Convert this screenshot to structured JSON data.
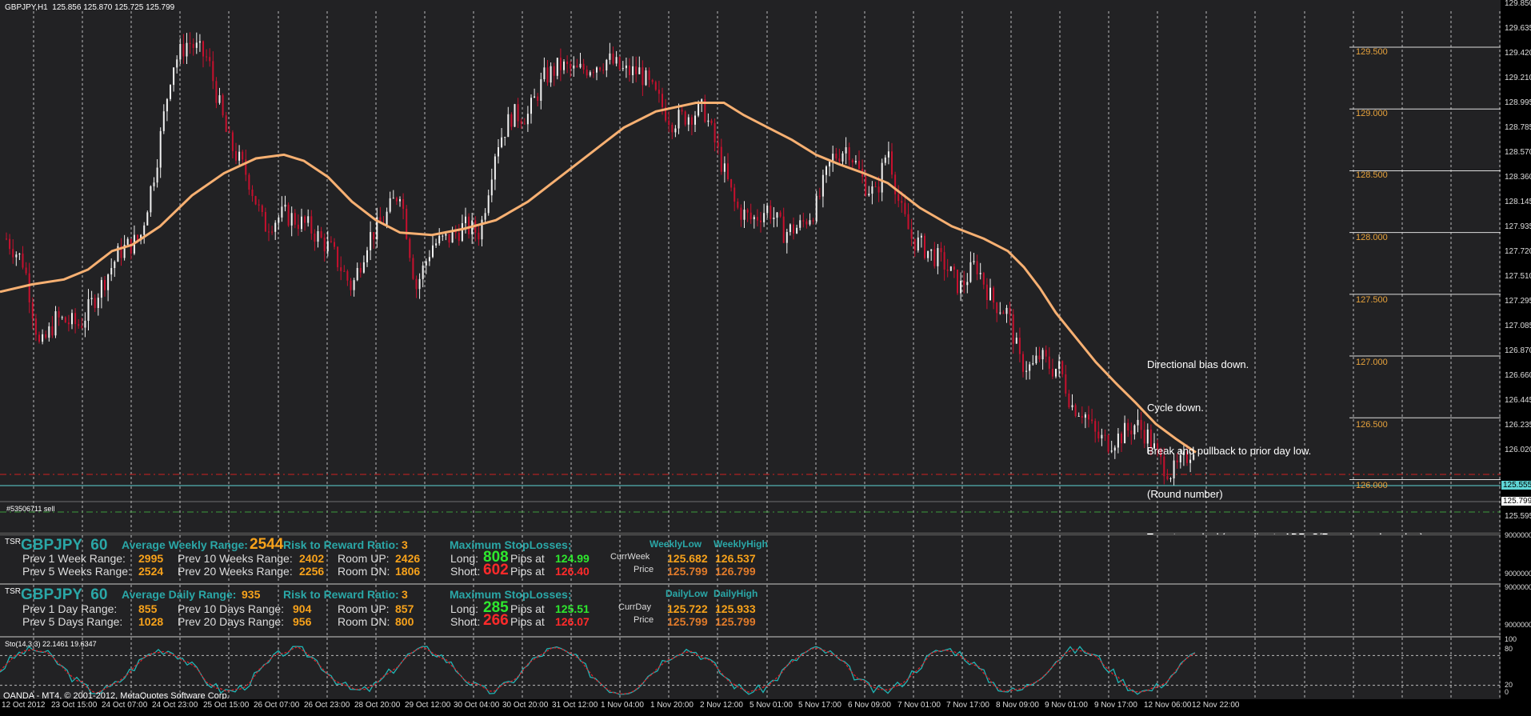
{
  "chart": {
    "header": "GBPJPY,H1  125.856 125.870 125.725 125.799",
    "price_scale": [
      "129.850",
      "129.635",
      "129.420",
      "129.210",
      "128.995",
      "128.785",
      "128.570",
      "128.360",
      "128.145",
      "127.935",
      "127.720",
      "127.510",
      "127.295",
      "127.085",
      "126.870",
      "126.660",
      "126.445",
      "126.235",
      "126.020",
      "125.555",
      "125.799",
      "125.595"
    ],
    "level_labels": [
      "129.500",
      "129.000",
      "128.500",
      "128.000",
      "127.500",
      "127.000",
      "126.500",
      "126.000"
    ],
    "order_label": "#53506711 sell",
    "current_price": "125.799",
    "cyan_price": "125.555",
    "red_line_price": "126.020",
    "annotation": [
      "Directional bias down.",
      "Cycle down.",
      "Break and pullback to prior day low.",
      "(Round number)",
      "Targets marked (according to ADR, S/R, and round number)"
    ],
    "colors": {
      "ma": "#f7b072",
      "cyan": "#5fd6d6",
      "red_dash": "#d02020",
      "green_dash": "#3c9a3c",
      "bg": "#222224"
    }
  },
  "panel_weekly": {
    "tag": "TSR",
    "symbol": "GBPJPY  60",
    "avg_label": "Average Weekly Range:",
    "avg_value": "2544",
    "rr_label": "Risk to Reward Ratio:",
    "rr_value": "3",
    "max_sl": "Maximum StopLosses;",
    "hi_lo": [
      "WeeklyLow",
      "WeeklyHigh"
    ],
    "r1_label": "Prev 1 Week Range:",
    "r1_value": "2995",
    "r10_label": "Prev 10 Weeks Range:",
    "r10_value": "2402",
    "r5_label": "Prev 5 Weeks Range:",
    "r5_value": "2524",
    "r20_label": "Prev 20 Weeks Range:",
    "r20_value": "2256",
    "room_up_label": "Room UP:",
    "room_up": "2426",
    "room_dn_label": "Room DN:",
    "room_dn": "1806",
    "long_label": "Long:",
    "long_pips": "808",
    "short_label": "Short:",
    "short_pips": "602",
    "pips_at": "Pips at",
    "long_price": "124.99",
    "short_price": "126.40",
    "curr_label": "CurrWeek",
    "price_label": "Price",
    "low_curr": "125.682",
    "high_curr": "126.537",
    "low_price": "125.799",
    "high_price": "126.799"
  },
  "panel_daily": {
    "tag": "TSR",
    "symbol": "GBPJPY  60",
    "avg_label": "Average Daily Range:",
    "avg_value": "935",
    "rr_label": "Risk to Reward Ratio:",
    "rr_value": "3",
    "max_sl": "Maximum StopLosses;",
    "hi_lo": [
      "DailyLow",
      "DailyHigh"
    ],
    "r1_label": "Prev 1 Day Range:",
    "r1_value": "855",
    "r10_label": "Prev 10 Days Range:",
    "r10_value": "904",
    "r5_label": "Prev 5 Days Range:",
    "r5_value": "1028",
    "r20_label": "Prev 20 Days Range:",
    "r20_value": "956",
    "room_up_label": "Room UP:",
    "room_up": "857",
    "room_dn_label": "Room DN:",
    "room_dn": "800",
    "long_label": "Long:",
    "long_pips": "285",
    "short_label": "Short:",
    "short_pips": "266",
    "pips_at": "Pips at",
    "long_price": "125.51",
    "short_price": "126.07",
    "curr_label": "CurrDay",
    "price_label": "Price",
    "low_curr": "125.722",
    "high_curr": "125.933",
    "low_price": "125.799",
    "high_price": "125.799"
  },
  "panel_scale": {
    "weekly": [
      "9000000",
      "9000000"
    ],
    "daily": [
      "9000000",
      "9000000"
    ]
  },
  "stoch": {
    "label": "Sto(14,3,3) 22.1461 19.6347",
    "levels": [
      "100",
      "80",
      "20",
      "0"
    ]
  },
  "copyright": "OANDA - MT4, © 2001-2012, MetaQuotes Software Corp.",
  "time_axis": [
    "12 Oct 2012",
    "23 Oct 15:00",
    "24 Oct 07:00",
    "24 Oct 23:00",
    "25 Oct 15:00",
    "26 Oct 07:00",
    "26 Oct 23:00",
    "28 Oct 20:00",
    "29 Oct 12:00",
    "30 Oct 04:00",
    "30 Oct 20:00",
    "31 Oct 12:00",
    "1 Nov 04:00",
    "1 Nov 20:00",
    "2 Nov 12:00",
    "5 Nov 01:00",
    "5 Nov 17:00",
    "6 Nov 09:00",
    "7 Nov 01:00",
    "7 Nov 17:00",
    "8 Nov 09:00",
    "9 Nov 01:00",
    "9 Nov 17:00",
    "12 Nov 06:00",
    "12 Nov 22:00"
  ]
}
